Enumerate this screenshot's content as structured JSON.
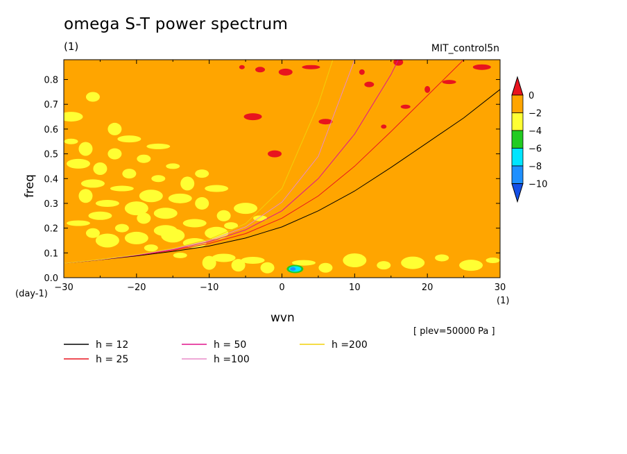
{
  "header": {
    "title": "omega S-T power spectrum",
    "subtitle": "(1)",
    "run_name": "MIT_control5n"
  },
  "axes": {
    "ylabel": "freq",
    "yunit": "(day-1)",
    "xlabel": "wvn",
    "xunit": "(1)"
  },
  "plev_note": "[ plev=50000 Pa ]",
  "colorbar": {
    "labels": [
      "0",
      "-2",
      "-4",
      "-6",
      "-8",
      "-10"
    ],
    "levels": [
      {
        "range": "> 0",
        "color": "#e8141e"
      },
      {
        "range": "0 to -2",
        "color": "#ffa500"
      },
      {
        "range": "-2 to -4",
        "color": "#ffff33"
      },
      {
        "range": "-4 to -6",
        "color": "#22cc22"
      },
      {
        "range": "-6 to -8",
        "color": "#00e5ff"
      },
      {
        "range": "-8 to -10",
        "color": "#1e90ff"
      },
      {
        "range": "< -10",
        "color": "#1450e6"
      }
    ]
  },
  "chart_data": {
    "type": "heatmap",
    "title": "omega S-T power spectrum",
    "xlabel": "wvn",
    "ylabel": "freq",
    "xlim": [
      -30,
      30
    ],
    "ylim": [
      0,
      0.88
    ],
    "xticks": [
      "-30",
      "-20",
      "-10",
      "0",
      "10",
      "20",
      "30"
    ],
    "yticks": [
      "0.0",
      "0.1",
      "0.2",
      "0.3",
      "0.4",
      "0.5",
      "0.6",
      "0.7",
      "0.8"
    ],
    "background_level": "0 to -2",
    "series": [
      {
        "name": "h = 12",
        "color": "#000000",
        "x": [
          -30,
          -25,
          -20,
          -15,
          -10,
          -5,
          0,
          5,
          10,
          15,
          20,
          25,
          30
        ],
        "y": [
          0.058,
          0.072,
          0.088,
          0.106,
          0.128,
          0.16,
          0.205,
          0.27,
          0.35,
          0.445,
          0.545,
          0.645,
          0.76
        ]
      },
      {
        "name": "h = 25",
        "color": "#e8141e",
        "x": [
          -30,
          -25,
          -20,
          -15,
          -10,
          -5,
          0,
          5,
          10,
          15,
          20,
          25
        ],
        "y": [
          0.058,
          0.073,
          0.09,
          0.11,
          0.138,
          0.178,
          0.24,
          0.33,
          0.45,
          0.59,
          0.735,
          0.88
        ]
      },
      {
        "name": "h = 50",
        "color": "#e0148c",
        "x": [
          -30,
          -25,
          -20,
          -15,
          -10,
          -5,
          0,
          5,
          10,
          15,
          16
        ],
        "y": [
          0.058,
          0.073,
          0.091,
          0.113,
          0.145,
          0.193,
          0.27,
          0.4,
          0.58,
          0.82,
          0.88
        ]
      },
      {
        "name": "h =100",
        "color": "#e88cc8",
        "x": [
          -30,
          -25,
          -20,
          -15,
          -10,
          -5,
          0,
          5,
          10
        ],
        "y": [
          0.058,
          0.073,
          0.092,
          0.116,
          0.15,
          0.205,
          0.305,
          0.49,
          0.88
        ]
      },
      {
        "name": "h =200",
        "color": "#f2d00a",
        "x": [
          -30,
          -25,
          -20,
          -15,
          -10,
          -5,
          0,
          5,
          7
        ],
        "y": [
          0.058,
          0.074,
          0.093,
          0.118,
          0.155,
          0.218,
          0.36,
          0.7,
          0.88
        ]
      }
    ],
    "yellow_patches": [
      [
        -29,
        0.55
      ],
      [
        -28,
        0.46
      ],
      [
        -27,
        0.52
      ],
      [
        -26,
        0.38
      ],
      [
        -25,
        0.44
      ],
      [
        -24,
        0.3
      ],
      [
        -23,
        0.5
      ],
      [
        -22,
        0.36
      ],
      [
        -21,
        0.42
      ],
      [
        -20,
        0.28
      ],
      [
        -19,
        0.48
      ],
      [
        -18,
        0.33
      ],
      [
        -17,
        0.4
      ],
      [
        -16,
        0.26
      ],
      [
        -15,
        0.45
      ],
      [
        -14,
        0.32
      ],
      [
        -13,
        0.38
      ],
      [
        -12,
        0.22
      ],
      [
        -11,
        0.3
      ],
      [
        -9,
        0.36
      ],
      [
        -8,
        0.25
      ],
      [
        -28,
        0.22
      ],
      [
        -26,
        0.18
      ],
      [
        -24,
        0.15
      ],
      [
        -22,
        0.2
      ],
      [
        -20,
        0.16
      ],
      [
        -18,
        0.12
      ],
      [
        -16,
        0.19
      ],
      [
        -14,
        0.09
      ],
      [
        -12,
        0.14
      ],
      [
        -10,
        0.06
      ],
      [
        -8,
        0.08
      ],
      [
        -6,
        0.05
      ],
      [
        -4,
        0.07
      ],
      [
        -2,
        0.04
      ],
      [
        3,
        0.06
      ],
      [
        6,
        0.04
      ],
      [
        10,
        0.07
      ],
      [
        14,
        0.05
      ],
      [
        18,
        0.06
      ],
      [
        22,
        0.08
      ],
      [
        26,
        0.05
      ],
      [
        29,
        0.07
      ],
      [
        -29,
        0.65
      ],
      [
        -27,
        0.33
      ],
      [
        -25,
        0.25
      ],
      [
        -23,
        0.6
      ],
      [
        -21,
        0.56
      ],
      [
        -19,
        0.24
      ],
      [
        -17,
        0.53
      ],
      [
        -26,
        0.73
      ],
      [
        -15,
        0.17
      ],
      [
        -11,
        0.42
      ],
      [
        -9,
        0.18
      ],
      [
        -7,
        0.21
      ],
      [
        -5,
        0.28
      ],
      [
        -3,
        0.24
      ]
    ],
    "red_patches": [
      [
        -5.5,
        0.85
      ],
      [
        -3,
        0.84
      ],
      [
        0.5,
        0.83
      ],
      [
        4,
        0.85
      ],
      [
        11,
        0.83
      ],
      [
        16,
        0.87
      ],
      [
        23,
        0.79
      ],
      [
        27.5,
        0.85
      ],
      [
        20,
        0.76
      ],
      [
        17,
        0.69
      ],
      [
        6,
        0.63
      ],
      [
        -4,
        0.65
      ],
      [
        14,
        0.61
      ],
      [
        12,
        0.78
      ],
      [
        -1,
        0.5
      ]
    ],
    "deep_patches": [
      [
        1.8,
        0.035
      ]
    ]
  }
}
